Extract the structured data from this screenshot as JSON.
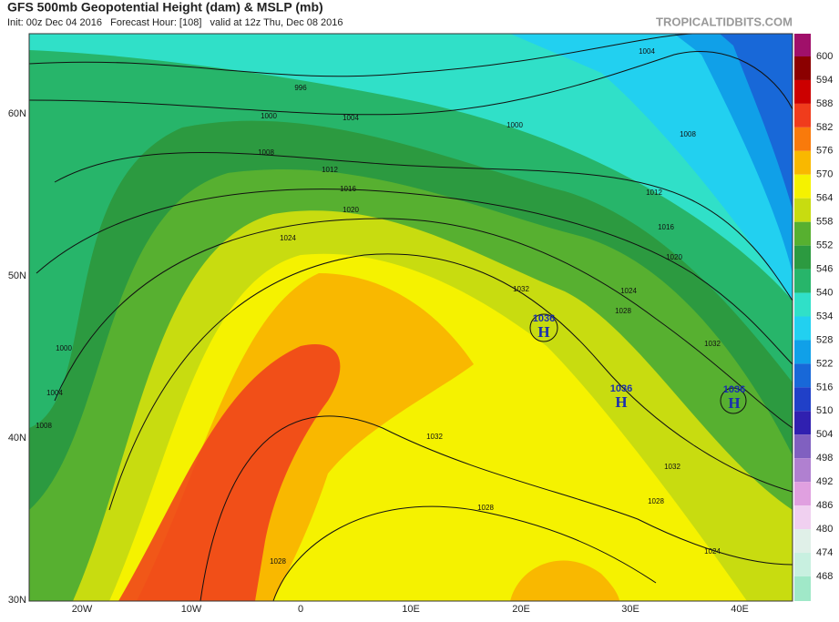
{
  "header": {
    "title": "GFS 500mb Geopotential Height (dam) & MSLP (mb)",
    "subtitle": "Init: 00z Dec 04 2016   Forecast Hour: [108]   valid at 12z Thu, Dec 08 2016",
    "brand": "TROPICALTIDBITS.COM"
  },
  "map": {
    "lat_labels": [
      "60N",
      "50N",
      "40N",
      "30N"
    ],
    "lon_labels": [
      "20W",
      "10W",
      "0",
      "10E",
      "20E",
      "30E",
      "40E"
    ],
    "isobar_labels": [
      996,
      1000,
      1004,
      1000,
      1004,
      1008,
      1008,
      1012,
      1012,
      1016,
      1016,
      1020,
      1020,
      1024,
      1024,
      1028,
      1032,
      1032,
      1032,
      1032,
      1028,
      1028,
      1028,
      1024,
      1000,
      1004,
      1008
    ],
    "highs": [
      {
        "pressure": 1036,
        "label": "H"
      },
      {
        "pressure": 1036,
        "label": "H"
      },
      {
        "pressure": 1036,
        "label": "H"
      }
    ]
  },
  "colorbar": {
    "labels": [
      600,
      594,
      588,
      582,
      576,
      570,
      564,
      558,
      552,
      546,
      540,
      534,
      528,
      522,
      516,
      510,
      504,
      498,
      492,
      486,
      480,
      474,
      468
    ],
    "colors": [
      "#a0106a",
      "#8b0000",
      "#cc0000",
      "#f03c1c",
      "#f97a0b",
      "#f9b800",
      "#f5f200",
      "#c8dc10",
      "#57b030",
      "#2c9a40",
      "#27b56a",
      "#30e0c8",
      "#22d0f0",
      "#10a0e8",
      "#1868d8",
      "#2040c8",
      "#3020b0",
      "#8060c0",
      "#b080d0",
      "#e0a0e0",
      "#f0d0f0",
      "#e0f0e8",
      "#c8f0e0",
      "#a0e8c8"
    ]
  }
}
